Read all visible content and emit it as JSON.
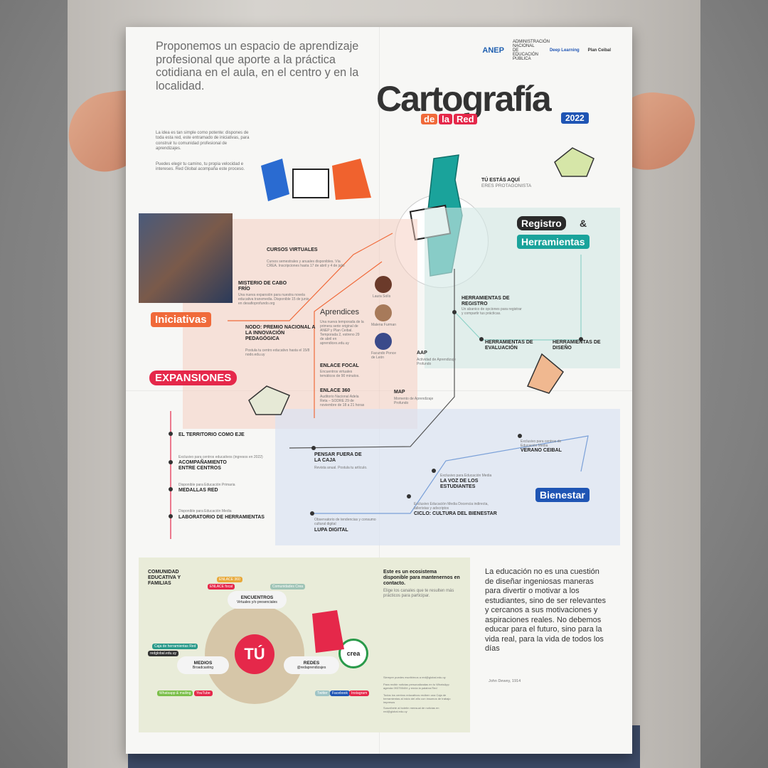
{
  "intro": {
    "headline": "Proponemos un espacio de aprendizaje profesional que aporte a la práctica cotidiana en el aula, en el centro y en la localidad.",
    "para1": "La idea es tan simple como potente: dispones de toda esta red, este entramado de iniciativas, para construir tu comunidad profesional de aprendizajes.",
    "para2": "Puedes elegir tu camino, tu propia velocidad e intereses. Red Global acompaña este proceso."
  },
  "logos": {
    "anep": "ANEP",
    "anep_sub": "ADMINISTRACIÓN NACIONAL DE EDUCACIÓN PÚBLICA",
    "deep": "Deep Learning",
    "ceibal": "Plan Ceibal"
  },
  "title": {
    "main": "Cartografía",
    "de": "de",
    "la": "la",
    "red": "Red",
    "year": "2022"
  },
  "here": {
    "title": "TÚ ESTÁS AQUÍ",
    "sub": "ERES PROTAGONISTA"
  },
  "sections": {
    "iniciativas": "Iniciativas",
    "expansiones": "EXPANSIONES",
    "registro": "Registro",
    "amp": "&",
    "herramientas": "Herramientas",
    "bienestar": "Bienestar"
  },
  "iniciativas": [
    {
      "title": "CURSOS VIRTUALES",
      "desc": "Cursos semestrales y anuales disponibles. Vía CREA. Inscripciones hasta 17 de abril y 4 de julio"
    },
    {
      "title": "MISTERIO DE CABO FRÍO",
      "desc": "Una nueva expansión para nuestra novela educativa transmedia. Disponible 15 de junio en desafioprofundo.org"
    },
    {
      "title": "NODO: PREMIO NACIONAL A LA INNOVACIÓN PEDAGÓGICA",
      "desc": "Postula tu centro educativo hasta el 15/8 nodo.edu.uy"
    }
  ],
  "aprendices": {
    "title": "Aprendices",
    "desc": "Una nueva temporada de la primera serie original de ANEP y Plan Ceibal. Temporada 2, estreno 29 de abril en aprendices.edu.uy",
    "people": [
      "Laura Solís",
      "Malena Furman",
      "Facundo Ponce de León"
    ]
  },
  "enlaces": [
    {
      "title": "ENLACE FOCAL",
      "desc": "Encuentros virtuales temáticos de 90 minutos."
    },
    {
      "title": "ENLACE 360",
      "desc": "Auditorio Nacional Adela Reta – SODRE 29 de noviembre de 18 a 21 horas"
    }
  ],
  "registro": [
    {
      "title": "HERRAMIENTAS DE REGISTRO",
      "desc": "Un abanico de opciones para registrar y compartir tus prácticas."
    },
    {
      "title": "HERRAMIENTAS DE EVALUACIÓN",
      "desc": ""
    },
    {
      "title": "HERRAMIENTAS DE DISEÑO",
      "desc": ""
    }
  ],
  "mid": [
    {
      "title": "AAP",
      "desc": "Actividad de Aprendizaje Profundo"
    },
    {
      "title": "MAP",
      "desc": "Momento de Aprendizaje Profundo"
    }
  ],
  "expansiones": [
    {
      "title": "EL TERRITORIO COMO EJE",
      "pre": ""
    },
    {
      "title": "ACOMPAÑAMIENTO ENTRE CENTROS",
      "pre": "Exclusivo para centros educativos (ingresos en 2022)"
    },
    {
      "title": "MEDALLAS RED",
      "pre": "Disponible para Educación Primaria"
    },
    {
      "title": "LABORATORIO DE HERRAMIENTAS",
      "pre": "Disponible para Educación Media"
    }
  ],
  "bienestar": [
    {
      "title": "PENSAR FUERA DE LA CAJA",
      "desc": "Revista anual. Postula tu artículo."
    },
    {
      "title": "VERANO CEIBAL",
      "pre": "Exclusivo para centros de Educación Media"
    },
    {
      "title": "LA VOZ DE LOS ESTUDIANTES",
      "pre": "Exclusivo para Educación Media"
    },
    {
      "title": "CICLO: CULTURA DEL BIENESTAR",
      "pre": "Exclusivo Educación Media Docencia indirecta, talleristas y adscriptos"
    },
    {
      "title": "LUPA DIGITAL",
      "pre": "Observatorio de tendencias y consumo cultural digital"
    }
  ],
  "community": {
    "heading": "COMUNIDAD EDUCATIVA Y FAMILIAS",
    "center": "TÚ",
    "encuentros": "ENCUENTROS",
    "encuentros_sub": "Virtuales y/o presenciales",
    "medios": "MEDIOS",
    "medios_sub": "Broadcasting",
    "redes": "REDES",
    "redes_sub": "@redaprendizajes",
    "crea": "crea",
    "chips": [
      "ENLACE 360",
      "ENLACE focal",
      "Comunidades Crea",
      "Caja de herramientas Red",
      "redglobal.edu.uy",
      "Whatsapp & mailing",
      "YouTube",
      "Twitter",
      "Facebook",
      "Instagram"
    ]
  },
  "ecosystem": {
    "title": "Este es un ecosistema disponible para mantenernos en contacto.",
    "text": "Elige los canales que te resulten más prácticos para participar.",
    "fine": [
      "Siempre puedes escribirnos a red@global.edu.uy",
      "Para recibir noticias personalizadas en tu WhatsApp agenda 093755404 y envía la palabra Red",
      "Todos los centros educativos reciben una Caja de herramientas al inicio del año con insumos de trabajo impresos",
      "Suscríbete al boletín mensual de noticias en red@global.edu.uy"
    ]
  },
  "quote": {
    "text": "La educación no es una cuestión de diseñar ingeniosas maneras para divertir o motivar a los estudiantes, sino de ser relevantes y cercanos a sus motivaciones y aspiraciones reales. No debemos educar para el futuro, sino para la vida real, para la vida de todos los días",
    "author": "John Dewey, 1914"
  },
  "colors": {
    "orange": "#f06a3a",
    "red": "#e5284a",
    "teal": "#1aa39b",
    "blue": "#1f55b4",
    "dark": "#333333"
  }
}
